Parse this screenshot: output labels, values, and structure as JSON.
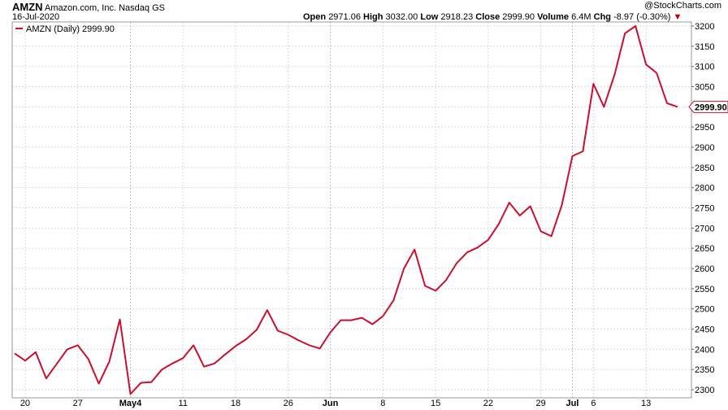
{
  "header": {
    "symbol": "AMZN",
    "company": "Amazon.com, Inc.",
    "exchange": "Nasdaq GS",
    "date": "16-Jul-2020",
    "open_label": "Open",
    "open": "2971.06",
    "high_label": "High",
    "high": "3032.00",
    "low_label": "Low",
    "low": "2918.23",
    "close_label": "Close",
    "close": "2999.90",
    "volume_label": "Volume",
    "volume": "6.4M",
    "chg_label": "Chg",
    "chg": "-8.97 (-0.30%)",
    "down_arrow": "▼",
    "watermark": "@StockCharts.com"
  },
  "legend": {
    "text": "AMZN (Daily) 2999.90",
    "color": "#c8102e"
  },
  "price_tag": "2999.90",
  "chart_data": {
    "type": "line",
    "series": [
      {
        "name": "AMZN (Daily) 2999.90",
        "color": "#c8102e",
        "values": [
          2390,
          2372,
          2393,
          2328,
          2364,
          2400,
          2410,
          2376,
          2315,
          2370,
          2474,
          2289,
          2317,
          2319,
          2350,
          2365,
          2378,
          2410,
          2357,
          2365,
          2387,
          2408,
          2425,
          2448,
          2497,
          2446,
          2436,
          2422,
          2410,
          2402,
          2442,
          2472,
          2472,
          2478,
          2462,
          2482,
          2521,
          2600,
          2647,
          2557,
          2545,
          2571,
          2613,
          2640,
          2652,
          2671,
          2710,
          2763,
          2731,
          2754,
          2692,
          2680,
          2757,
          2878,
          2890,
          3057,
          3000,
          3079,
          3182,
          3200,
          3105,
          3084,
          3009,
          2999.9
        ]
      }
    ],
    "xlabels": [
      {
        "index": 1,
        "label": "20"
      },
      {
        "index": 6,
        "label": "27"
      },
      {
        "index": 11,
        "label": "May4",
        "bold": true
      },
      {
        "index": 16,
        "label": "11"
      },
      {
        "index": 21,
        "label": "18"
      },
      {
        "index": 26,
        "label": "26"
      },
      {
        "index": 30,
        "label": "Jun",
        "bold": true
      },
      {
        "index": 35,
        "label": "8"
      },
      {
        "index": 40,
        "label": "15"
      },
      {
        "index": 45,
        "label": "22"
      },
      {
        "index": 50,
        "label": "29"
      },
      {
        "index": 53,
        "label": "Jul",
        "bold": true
      },
      {
        "index": 55,
        "label": "6"
      },
      {
        "index": 60,
        "label": "13"
      }
    ],
    "yticks": [
      2300,
      2350,
      2400,
      2450,
      2500,
      2550,
      2600,
      2650,
      2700,
      2750,
      2800,
      2850,
      2900,
      2950,
      3000,
      3050,
      3100,
      3150,
      3200
    ],
    "ylim": [
      2280,
      3210
    ],
    "grid": true,
    "axis_side": "right"
  }
}
